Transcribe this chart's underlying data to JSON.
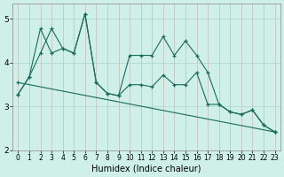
{
  "xlabel": "Humidex (Indice chaleur)",
  "bg_color": "#cef0e8",
  "grid_color_major": "#aed4cc",
  "grid_color_minor": "#c8e8e0",
  "line_color": "#1a6b5a",
  "xlim": [
    -0.5,
    23.5
  ],
  "ylim": [
    2.0,
    5.35
  ],
  "xticks": [
    0,
    1,
    2,
    3,
    4,
    5,
    6,
    7,
    8,
    9,
    10,
    11,
    12,
    13,
    14,
    15,
    16,
    17,
    18,
    19,
    20,
    21,
    22,
    23
  ],
  "yticks": [
    2,
    3,
    4,
    5
  ],
  "line1_x": [
    0,
    1,
    2,
    3,
    4,
    5,
    6,
    7,
    8,
    9,
    10,
    11,
    12,
    13,
    14,
    15,
    16,
    17,
    18,
    19,
    20,
    21,
    22,
    23
  ],
  "line1_y": [
    3.28,
    3.68,
    4.78,
    4.22,
    4.33,
    4.22,
    5.12,
    3.55,
    3.3,
    3.25,
    4.17,
    4.17,
    4.17,
    4.6,
    4.17,
    4.5,
    4.17,
    3.78,
    3.05,
    2.88,
    2.82,
    2.92,
    2.58,
    2.42
  ],
  "line2_x": [
    0,
    1,
    2,
    3,
    4,
    5,
    6,
    7,
    8,
    9,
    10,
    11,
    12,
    13,
    14,
    15,
    16,
    17,
    18,
    19,
    20,
    21,
    22,
    23
  ],
  "line2_y": [
    3.28,
    3.68,
    4.22,
    4.78,
    4.33,
    4.22,
    5.12,
    3.55,
    3.3,
    3.25,
    3.5,
    3.5,
    3.45,
    3.72,
    3.5,
    3.5,
    3.78,
    3.05,
    3.05,
    2.88,
    2.82,
    2.92,
    2.58,
    2.42
  ],
  "line3_x": [
    0,
    23
  ],
  "line3_y": [
    3.55,
    2.42
  ],
  "xlabel_fontsize": 7,
  "tick_fontsize": 5.5
}
